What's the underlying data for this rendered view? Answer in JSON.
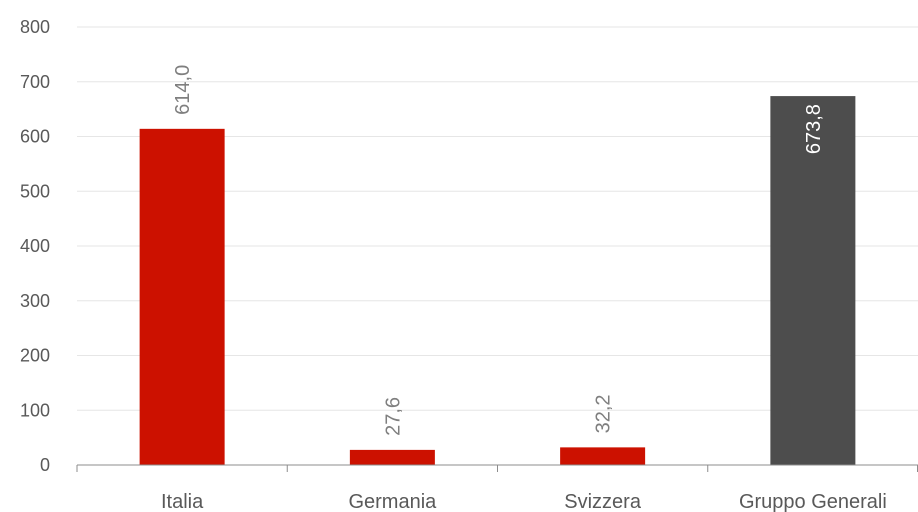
{
  "chart_data": {
    "type": "bar",
    "categories": [
      "Italia",
      "Germania",
      "Svizzera",
      "Gruppo Generali"
    ],
    "values": [
      614.0,
      27.6,
      32.2,
      673.8
    ],
    "data_labels": [
      "614,0",
      "27,6",
      "32,2",
      "673,8"
    ],
    "bar_colors": [
      "#cc1100",
      "#cc1100",
      "#cc1100",
      "#4d4d4d"
    ],
    "data_label_colors": [
      "#7f7f7f",
      "#7f7f7f",
      "#7f7f7f",
      "#ffffff"
    ],
    "data_label_positions": [
      "outside",
      "outside",
      "outside",
      "inside"
    ],
    "ylim": [
      0,
      800
    ],
    "yticks": [
      0,
      100,
      200,
      300,
      400,
      500,
      600,
      700,
      800
    ],
    "title": "",
    "xlabel": "",
    "ylabel": "",
    "grid": true,
    "legend": false
  },
  "colors": {
    "grid": "#e6e6e6",
    "axis": "#8c8c8c",
    "text": "#595959"
  }
}
